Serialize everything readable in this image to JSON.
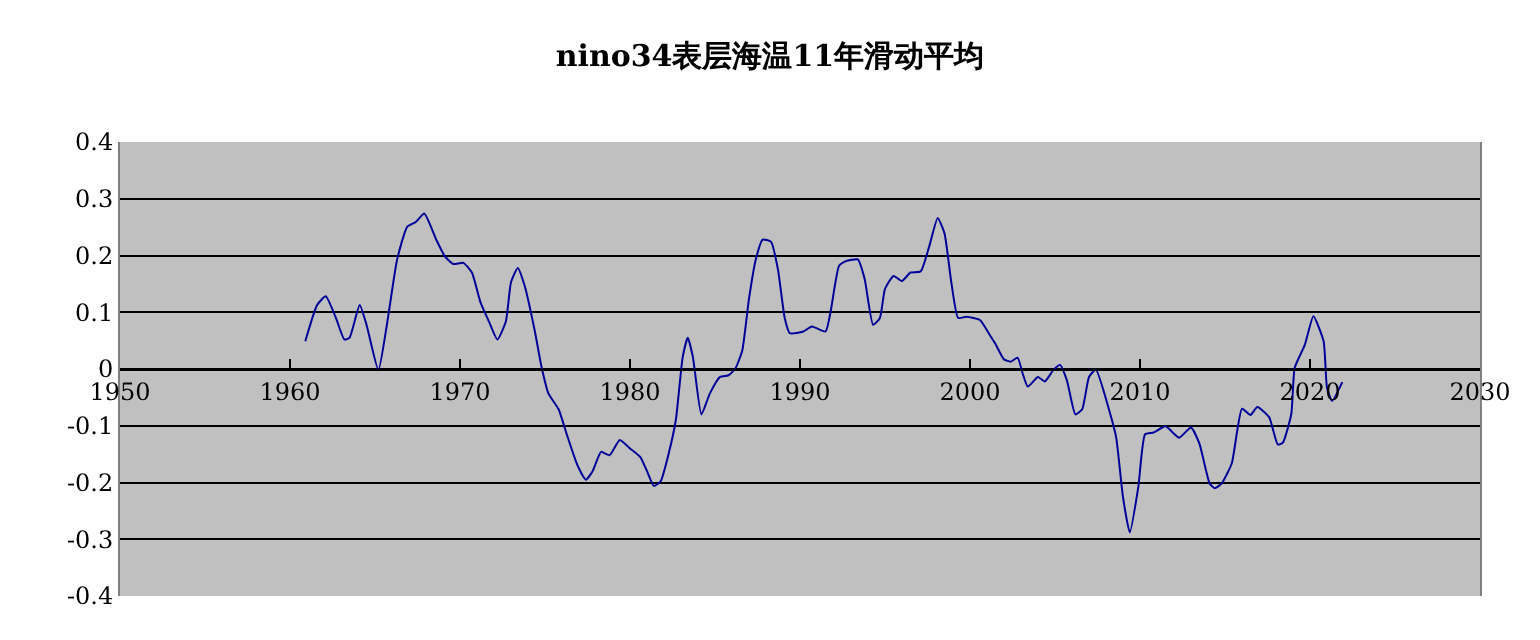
{
  "chart_data": {
    "type": "line",
    "title": "nino34表层海温11年滑动平均",
    "x": [
      1960.9,
      1961.6,
      1962.1,
      1962.7,
      1963.2,
      1963.5,
      1964.1,
      1964.5,
      1965.2,
      1965.7,
      1966.3,
      1966.9,
      1967.4,
      1967.9,
      1968.6,
      1969.1,
      1969.6,
      1970.2,
      1970.7,
      1971.2,
      1971.7,
      1972.2,
      1972.7,
      1973.0,
      1973.4,
      1973.8,
      1974.4,
      1974.8,
      1975.2,
      1975.8,
      1976.3,
      1976.9,
      1977.4,
      1977.8,
      1978.3,
      1978.8,
      1979.4,
      1980.0,
      1980.6,
      1981.0,
      1981.4,
      1981.8,
      1982.3,
      1982.7,
      1983.1,
      1983.4,
      1983.7,
      1984.2,
      1984.7,
      1985.3,
      1985.8,
      1986.2,
      1986.6,
      1987.0,
      1987.4,
      1987.8,
      1988.3,
      1988.7,
      1989.1,
      1989.4,
      1990.2,
      1990.7,
      1991.5,
      1991.8,
      1992.3,
      1992.7,
      1993.4,
      1993.8,
      1994.3,
      1994.7,
      1995.0,
      1995.5,
      1996.0,
      1996.5,
      1997.1,
      1997.6,
      1998.1,
      1998.5,
      1998.9,
      1999.3,
      1999.8,
      2000.6,
      2001.1,
      2001.5,
      2002.0,
      2002.4,
      2002.8,
      2003.1,
      2003.4,
      2004.0,
      2004.4,
      2004.9,
      2005.3,
      2005.7,
      2006.2,
      2006.6,
      2007.0,
      2007.4,
      2008.2,
      2008.6,
      2009.0,
      2009.4,
      2009.9,
      2010.3,
      2010.8,
      2011.5,
      2012.3,
      2013.0,
      2013.5,
      2014.1,
      2014.4,
      2014.8,
      2015.4,
      2016.0,
      2016.5,
      2016.9,
      2017.6,
      2018.1,
      2018.4,
      2018.9,
      2019.1,
      2019.7,
      2020.2,
      2020.8,
      2021.0,
      2021.3,
      2021.9
    ],
    "series": [
      {
        "color": "#000099",
        "values": [
          0.049,
          0.113,
          0.128,
          0.09,
          0.052,
          0.055,
          0.113,
          0.078,
          -0.002,
          0.078,
          0.193,
          0.251,
          0.259,
          0.274,
          0.228,
          0.199,
          0.185,
          0.187,
          0.17,
          0.118,
          0.084,
          0.052,
          0.084,
          0.153,
          0.178,
          0.147,
          0.067,
          0.003,
          -0.043,
          -0.071,
          -0.117,
          -0.169,
          -0.195,
          -0.18,
          -0.146,
          -0.152,
          -0.125,
          -0.14,
          -0.155,
          -0.18,
          -0.206,
          -0.198,
          -0.146,
          -0.089,
          0.021,
          0.055,
          0.021,
          -0.08,
          -0.043,
          -0.014,
          -0.011,
          0.001,
          0.032,
          0.124,
          0.193,
          0.228,
          0.224,
          0.176,
          0.09,
          0.063,
          0.066,
          0.075,
          0.066,
          0.101,
          0.182,
          0.19,
          0.193,
          0.159,
          0.078,
          0.09,
          0.141,
          0.164,
          0.155,
          0.17,
          0.172,
          0.216,
          0.266,
          0.239,
          0.153,
          0.09,
          0.092,
          0.086,
          0.063,
          0.044,
          0.017,
          0.013,
          0.02,
          -0.008,
          -0.031,
          -0.014,
          -0.022,
          -0.002,
          0.007,
          -0.02,
          -0.08,
          -0.071,
          -0.014,
          -0.001,
          -0.074,
          -0.121,
          -0.226,
          -0.288,
          -0.208,
          -0.115,
          -0.112,
          -0.101,
          -0.121,
          -0.103,
          -0.132,
          -0.202,
          -0.21,
          -0.202,
          -0.166,
          -0.07,
          -0.081,
          -0.067,
          -0.085,
          -0.133,
          -0.13,
          -0.079,
          0.002,
          0.043,
          0.093,
          0.049,
          -0.033,
          -0.056,
          -0.023
        ]
      }
    ],
    "xlim": [
      1950,
      2030
    ],
    "xticks": [
      1950,
      1960,
      1970,
      1980,
      1990,
      2000,
      2010,
      2020,
      2030
    ],
    "ylim": [
      -0.4,
      0.4
    ],
    "yticks": [
      {
        "value": -0.4,
        "label": "-0.4"
      },
      {
        "value": -0.3,
        "label": "-0.3"
      },
      {
        "value": -0.2,
        "label": "-0.2"
      },
      {
        "value": -0.1,
        "label": "-0.1"
      },
      0,
      {
        "value": 0.1,
        "label": "0.1"
      },
      {
        "value": 0.2,
        "label": "0.2"
      },
      {
        "value": 0.3,
        "label": "0.3"
      },
      {
        "value": 0.4,
        "label": "0.4"
      }
    ],
    "grid": "y",
    "marker": "none",
    "line_style": "solid"
  }
}
